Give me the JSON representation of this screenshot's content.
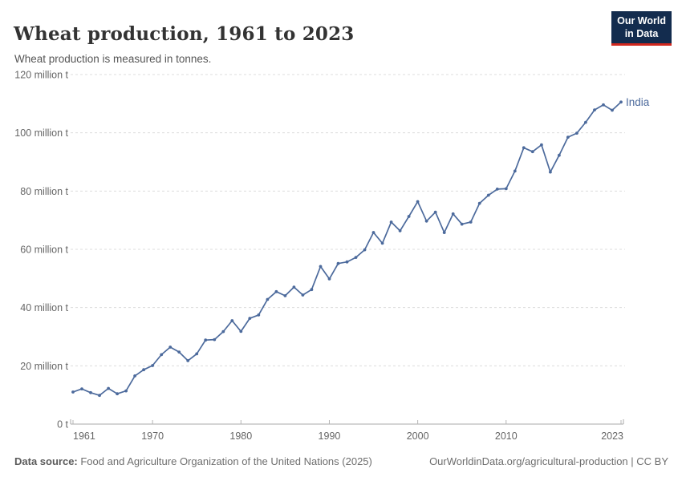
{
  "header": {
    "title": "Wheat production, 1961 to 2023",
    "subtitle": "Wheat production is measured in tonnes."
  },
  "logo": {
    "line1": "Our World",
    "line2": "in Data",
    "bg_color": "#132c4e",
    "accent_color": "#d1281e",
    "text_color": "#ffffff"
  },
  "chart_data": {
    "type": "line",
    "title": "Wheat production, 1961 to 2023",
    "xlabel": "",
    "ylabel": "",
    "values_unit": "million tonnes",
    "ylim": [
      0,
      120
    ],
    "grid": "dashed horizontal",
    "legend_position": "end-of-line label",
    "x": [
      1961,
      1962,
      1963,
      1964,
      1965,
      1966,
      1967,
      1968,
      1969,
      1970,
      1971,
      1972,
      1973,
      1974,
      1975,
      1976,
      1977,
      1978,
      1979,
      1980,
      1981,
      1982,
      1983,
      1984,
      1985,
      1986,
      1987,
      1988,
      1989,
      1990,
      1991,
      1992,
      1993,
      1994,
      1995,
      1996,
      1997,
      1998,
      1999,
      2000,
      2001,
      2002,
      2003,
      2004,
      2005,
      2006,
      2007,
      2008,
      2009,
      2010,
      2011,
      2012,
      2013,
      2014,
      2015,
      2016,
      2017,
      2018,
      2019,
      2020,
      2021,
      2022,
      2023
    ],
    "series": [
      {
        "name": "India",
        "color": "#4c6a9c",
        "values": [
          11.0,
          12.07,
          10.78,
          9.85,
          12.26,
          10.4,
          11.39,
          16.54,
          18.65,
          20.09,
          23.83,
          26.41,
          24.74,
          21.78,
          24.1,
          28.84,
          29.01,
          31.75,
          35.51,
          31.83,
          36.31,
          37.45,
          42.79,
          45.48,
          44.07,
          47.05,
          44.32,
          46.17,
          54.11,
          49.85,
          55.14,
          55.69,
          57.21,
          59.84,
          65.77,
          62.1,
          69.35,
          66.35,
          71.29,
          76.37,
          69.68,
          72.77,
          65.76,
          72.16,
          68.64,
          69.35,
          75.81,
          78.57,
          80.68,
          80.8,
          86.87,
          94.88,
          93.51,
          95.85,
          86.53,
          92.29,
          98.51,
          99.87,
          103.6,
          107.86,
          109.59,
          107.74,
          110.55
        ]
      }
    ],
    "yticks": [
      {
        "value": 0,
        "label": "0 t"
      },
      {
        "value": 20,
        "label": "20 million t"
      },
      {
        "value": 40,
        "label": "40 million t"
      },
      {
        "value": 60,
        "label": "60 million t"
      },
      {
        "value": 80,
        "label": "80 million t"
      },
      {
        "value": 100,
        "label": "100 million t"
      },
      {
        "value": 120,
        "label": "120 million t"
      }
    ],
    "xticks": [
      {
        "value": 1961,
        "label": "1961"
      },
      {
        "value": 1970,
        "label": "1970"
      },
      {
        "value": 1980,
        "label": "1980"
      },
      {
        "value": 1990,
        "label": "1990"
      },
      {
        "value": 2000,
        "label": "2000"
      },
      {
        "value": 2010,
        "label": "2010"
      },
      {
        "value": 2023,
        "label": "2023"
      }
    ]
  },
  "footer": {
    "data_source_label": "Data source:",
    "data_source_text": " Food and Agriculture Organization of the United Nations (2025)",
    "right_text": "OurWorldinData.org/agricultural-production | CC BY"
  }
}
